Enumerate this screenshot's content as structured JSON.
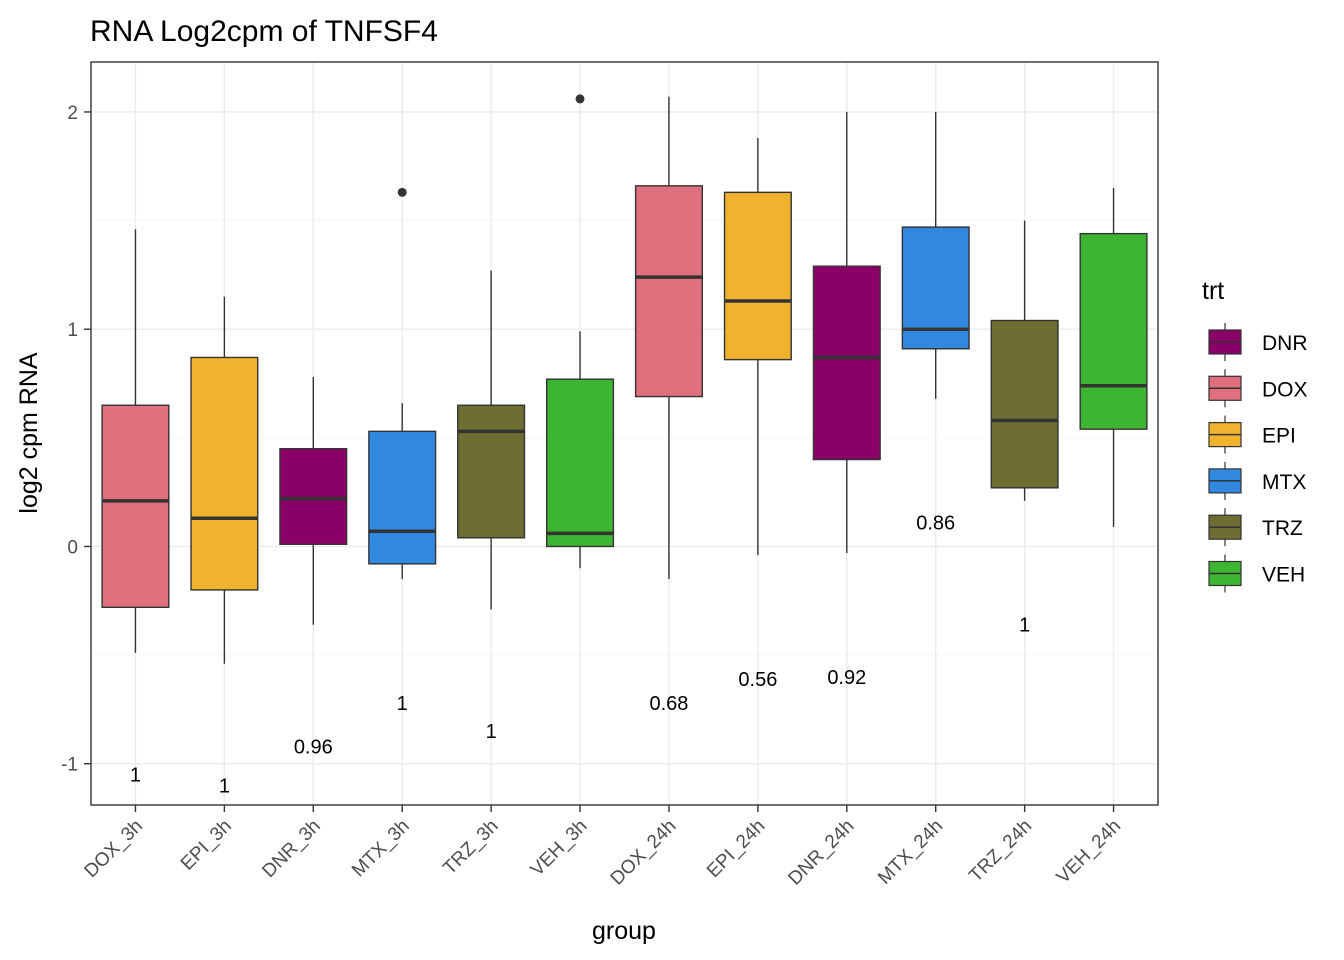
{
  "chart_data": {
    "type": "boxplot",
    "title": "RNA Log2cpm of TNFSF4",
    "xlabel": "group",
    "ylabel": "log2 cpm RNA",
    "ylim": [
      -1.19,
      2.23
    ],
    "yticks": [
      -1,
      0,
      1,
      2
    ],
    "grid": true,
    "legend": {
      "title": "trt",
      "position": "right",
      "entries": [
        {
          "label": "DNR",
          "color": "#8B0067"
        },
        {
          "label": "DOX",
          "color": "#E0707D"
        },
        {
          "label": "EPI",
          "color": "#F0B32E"
        },
        {
          "label": "MTX",
          "color": "#3088E0"
        },
        {
          "label": "TRZ",
          "color": "#6E6E32"
        },
        {
          "label": "VEH",
          "color": "#3DB533"
        }
      ]
    },
    "groups": [
      {
        "label": "DOX_3h",
        "trt": "DOX",
        "lower": -0.49,
        "q1": -0.28,
        "median": 0.21,
        "q3": 0.65,
        "upper": 1.46,
        "outliers": [],
        "annotation": "1",
        "annotation_y": -1.05
      },
      {
        "label": "EPI_3h",
        "trt": "EPI",
        "lower": -0.54,
        "q1": -0.2,
        "median": 0.13,
        "q3": 0.87,
        "upper": 1.15,
        "outliers": [],
        "annotation": "1",
        "annotation_y": -1.1
      },
      {
        "label": "DNR_3h",
        "trt": "DNR",
        "lower": -0.36,
        "q1": 0.01,
        "median": 0.22,
        "q3": 0.45,
        "upper": 0.78,
        "outliers": [],
        "annotation": "0.96",
        "annotation_y": -0.92
      },
      {
        "label": "MTX_3h",
        "trt": "MTX",
        "lower": -0.15,
        "q1": -0.08,
        "median": 0.07,
        "q3": 0.53,
        "upper": 0.66,
        "outliers": [
          1.63
        ],
        "annotation": "1",
        "annotation_y": -0.72
      },
      {
        "label": "TRZ_3h",
        "trt": "TRZ",
        "lower": -0.29,
        "q1": 0.04,
        "median": 0.53,
        "q3": 0.65,
        "upper": 1.27,
        "outliers": [],
        "annotation": "1",
        "annotation_y": -0.85
      },
      {
        "label": "VEH_3h",
        "trt": "VEH",
        "lower": -0.1,
        "q1": 0.0,
        "median": 0.06,
        "q3": 0.77,
        "upper": 0.99,
        "outliers": [
          2.06
        ],
        "annotation": "",
        "annotation_y": null
      },
      {
        "label": "DOX_24h",
        "trt": "DOX",
        "lower": -0.15,
        "q1": 0.69,
        "median": 1.24,
        "q3": 1.66,
        "upper": 2.07,
        "outliers": [],
        "annotation": "0.68",
        "annotation_y": -0.72
      },
      {
        "label": "EPI_24h",
        "trt": "EPI",
        "lower": -0.04,
        "q1": 0.86,
        "median": 1.13,
        "q3": 1.63,
        "upper": 1.88,
        "outliers": [],
        "annotation": "0.56",
        "annotation_y": -0.61
      },
      {
        "label": "DNR_24h",
        "trt": "DNR",
        "lower": -0.03,
        "q1": 0.4,
        "median": 0.87,
        "q3": 1.29,
        "upper": 2.0,
        "outliers": [],
        "annotation": "0.92",
        "annotation_y": -0.6
      },
      {
        "label": "MTX_24h",
        "trt": "MTX",
        "lower": 0.68,
        "q1": 0.91,
        "median": 1.0,
        "q3": 1.47,
        "upper": 2.0,
        "outliers": [],
        "annotation": "0.86",
        "annotation_y": 0.11
      },
      {
        "label": "TRZ_24h",
        "trt": "TRZ",
        "lower": 0.21,
        "q1": 0.27,
        "median": 0.58,
        "q3": 1.04,
        "upper": 1.5,
        "outliers": [],
        "annotation": "1",
        "annotation_y": -0.36
      },
      {
        "label": "VEH_24h",
        "trt": "VEH",
        "lower": 0.09,
        "q1": 0.54,
        "median": 0.74,
        "q3": 1.44,
        "upper": 1.65,
        "outliers": [],
        "annotation": "",
        "annotation_y": null
      }
    ]
  }
}
